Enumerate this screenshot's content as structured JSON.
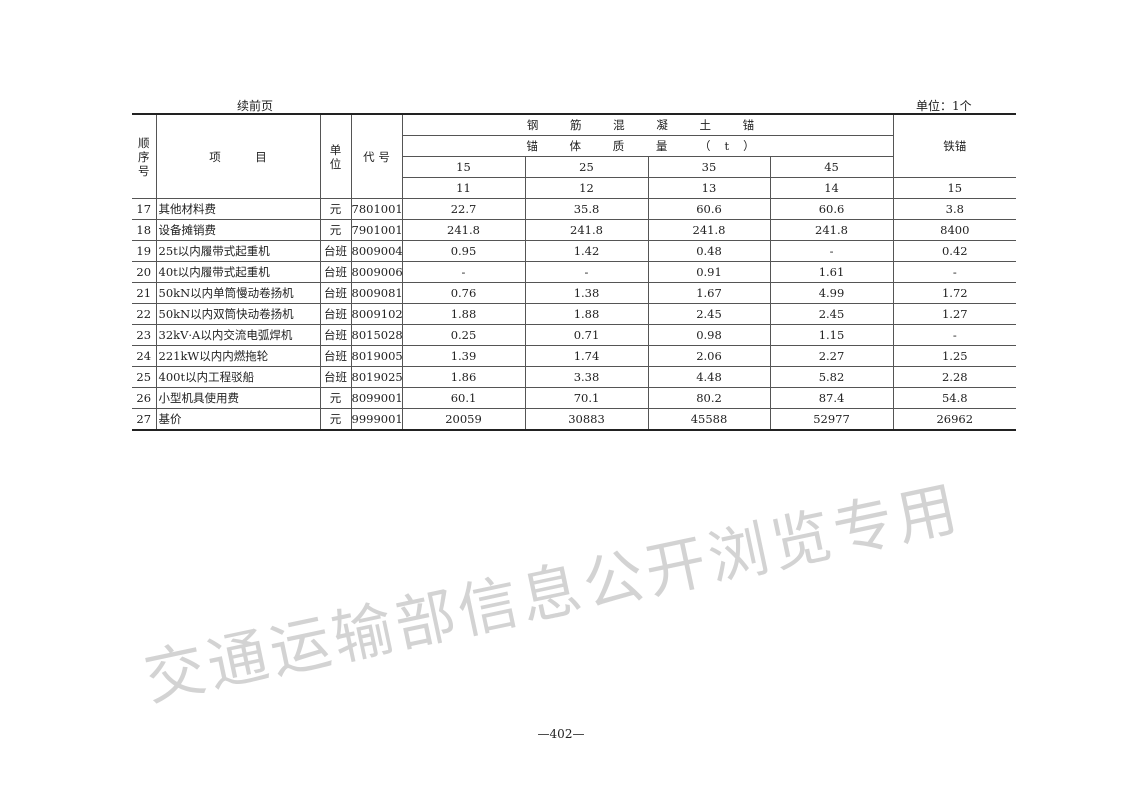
{
  "caption_left": "续前页",
  "caption_right": "单位：1个",
  "header": {
    "seq": "顺序号",
    "item": "项　　　目",
    "unit": "单位",
    "code": "代 号",
    "group": "钢 筋 混 凝 土 锚",
    "subgroup": "锚 体 质 量 （t）",
    "masses": [
      "15",
      "25",
      "35",
      "45"
    ],
    "iron_anchor": "铁锚",
    "col_numbers": [
      "11",
      "12",
      "13",
      "14",
      "15"
    ]
  },
  "rows": [
    {
      "no": "17",
      "item": "其他材料费",
      "unit": "元",
      "code": "7801001",
      "values": [
        "22.7",
        "35.8",
        "60.6",
        "60.6",
        "3.8"
      ]
    },
    {
      "no": "18",
      "item": "设备摊销费",
      "unit": "元",
      "code": "7901001",
      "values": [
        "241.8",
        "241.8",
        "241.8",
        "241.8",
        "8400"
      ]
    },
    {
      "no": "19",
      "item": "25t以内履带式起重机",
      "unit": "台班",
      "code": "8009004",
      "values": [
        "0.95",
        "1.42",
        "0.48",
        "-",
        "0.42"
      ]
    },
    {
      "no": "20",
      "item": "40t以内履带式起重机",
      "unit": "台班",
      "code": "8009006",
      "values": [
        "-",
        "-",
        "0.91",
        "1.61",
        "-"
      ]
    },
    {
      "no": "21",
      "item": "50kN以内单筒慢动卷扬机",
      "unit": "台班",
      "code": "8009081",
      "values": [
        "0.76",
        "1.38",
        "1.67",
        "4.99",
        "1.72"
      ]
    },
    {
      "no": "22",
      "item": "50kN以内双筒快动卷扬机",
      "unit": "台班",
      "code": "8009102",
      "values": [
        "1.88",
        "1.88",
        "2.45",
        "2.45",
        "1.27"
      ]
    },
    {
      "no": "23",
      "item": "32kV·A以内交流电弧焊机",
      "unit": "台班",
      "code": "8015028",
      "values": [
        "0.25",
        "0.71",
        "0.98",
        "1.15",
        "-"
      ]
    },
    {
      "no": "24",
      "item": "221kW以内内燃拖轮",
      "unit": "台班",
      "code": "8019005",
      "values": [
        "1.39",
        "1.74",
        "2.06",
        "2.27",
        "1.25"
      ]
    },
    {
      "no": "25",
      "item": "400t以内工程驳船",
      "unit": "台班",
      "code": "8019025",
      "values": [
        "1.86",
        "3.38",
        "4.48",
        "5.82",
        "2.28"
      ]
    },
    {
      "no": "26",
      "item": "小型机具使用费",
      "unit": "元",
      "code": "8099001",
      "values": [
        "60.1",
        "70.1",
        "80.2",
        "87.4",
        "54.8"
      ]
    },
    {
      "no": "27",
      "item": "基价",
      "unit": "元",
      "code": "9999001",
      "values": [
        "20059",
        "30883",
        "45588",
        "52977",
        "26962"
      ]
    }
  ],
  "page_number": "—402—",
  "watermark": "交通运输部信息公开浏览专用"
}
